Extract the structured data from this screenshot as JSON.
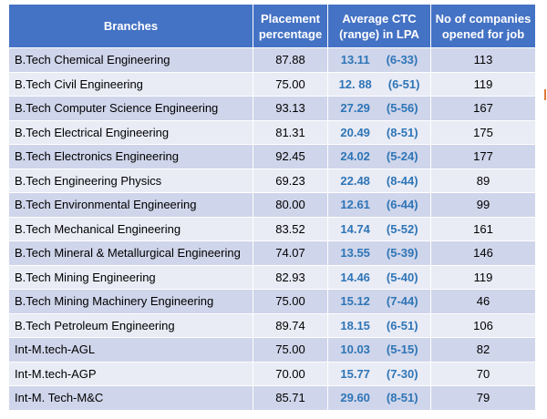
{
  "table": {
    "header": [
      [
        "Branches"
      ],
      [
        "Placement",
        "percentage"
      ],
      [
        "Average CTC",
        "(range) in LPA"
      ],
      [
        "No of companies",
        "opened for job"
      ]
    ],
    "rows": [
      {
        "branch": "B.Tech Chemical Engineering",
        "placement": "87.88",
        "ctc": "13.11",
        "range": "(6-33)",
        "companies": "113"
      },
      {
        "branch": "B.Tech Civil Engineering",
        "placement": "75.00",
        "ctc": "12. 88",
        "range": "(6-51)",
        "companies": "119"
      },
      {
        "branch": "B.Tech Computer Science Engineering",
        "placement": "93.13",
        "ctc": "27.29",
        "range": "(5-56)",
        "companies": "167"
      },
      {
        "branch": "B.Tech Electrical Engineering",
        "placement": "81.31",
        "ctc": "20.49",
        "range": "(8-51)",
        "companies": "175"
      },
      {
        "branch": "B.Tech Electronics Engineering",
        "placement": "92.45",
        "ctc": "24.02",
        "range": "(5-24)",
        "companies": "177"
      },
      {
        "branch": "B.Tech Engineering Physics",
        "placement": "69.23",
        "ctc": "22.48",
        "range": "(8-44)",
        "companies": "89"
      },
      {
        "branch": "B.Tech Environmental Engineering",
        "placement": "80.00",
        "ctc": "12.61",
        "range": "(6-44)",
        "companies": "99"
      },
      {
        "branch": "B.Tech Mechanical Engineering",
        "placement": "83.52",
        "ctc": "14.74",
        "range": "(5-52)",
        "companies": "161"
      },
      {
        "branch": "B.Tech Mineral & Metallurgical Engineering",
        "placement": "74.07",
        "ctc": "13.55",
        "range": "(5-39)",
        "companies": "146"
      },
      {
        "branch": "B.Tech Mining Engineering",
        "placement": "82.93",
        "ctc": "14.46",
        "range": "(5-40)",
        "companies": "119"
      },
      {
        "branch": "B.Tech Mining Machinery Engineering",
        "placement": "75.00",
        "ctc": "15.12",
        "range": "(7-44)",
        "companies": "46"
      },
      {
        "branch": "B.Tech Petroleum Engineering",
        "placement": "89.74",
        "ctc": "18.15",
        "range": "(6-51)",
        "companies": "106"
      },
      {
        "branch": "Int-M.tech-AGL",
        "placement": "75.00",
        "ctc": "10.03",
        "range": "(5-15)",
        "companies": "82"
      },
      {
        "branch": "Int-M.tech-AGP",
        "placement": "70.00",
        "ctc": "15.77",
        "range": "(7-30)",
        "companies": "70"
      },
      {
        "branch": "Int-M. Tech-M&C",
        "placement": "85.71",
        "ctc": "29.60",
        "range": "(8-51)",
        "companies": "79"
      }
    ]
  }
}
